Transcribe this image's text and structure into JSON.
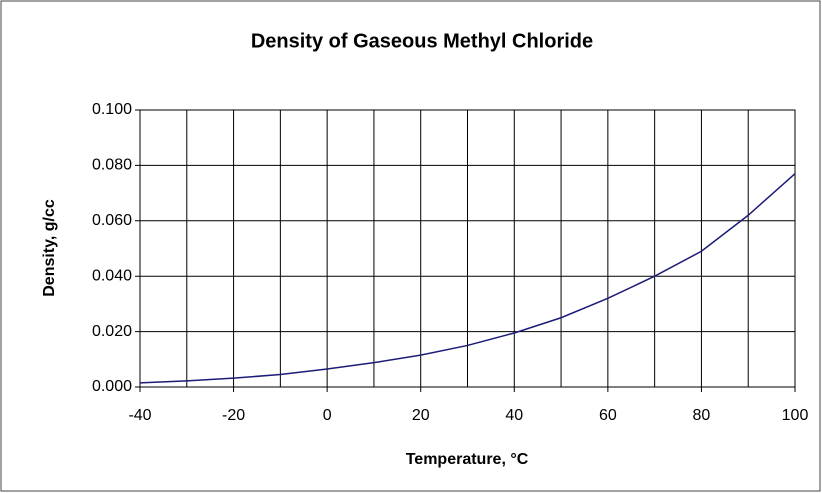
{
  "chart_data": {
    "type": "line",
    "title": "Density of Gaseous Methyl Chloride",
    "x_label": "Temperature, °C",
    "y_label": "Density, g/cc",
    "x": [
      -40,
      -30,
      -20,
      -10,
      0,
      10,
      20,
      30,
      40,
      50,
      60,
      70,
      80,
      90,
      100
    ],
    "series": [
      {
        "name": "Density",
        "color": "#1c1c78",
        "values": [
          0.0015,
          0.0022,
          0.0032,
          0.0045,
          0.0065,
          0.0088,
          0.0115,
          0.015,
          0.0195,
          0.025,
          0.032,
          0.04,
          0.049,
          0.062,
          0.077
        ]
      }
    ],
    "xlim": [
      -40,
      100
    ],
    "xticks": [
      -40,
      -20,
      0,
      20,
      40,
      60,
      80,
      100
    ],
    "xgrid": [
      -40,
      -30,
      -20,
      -10,
      0,
      10,
      20,
      30,
      40,
      50,
      60,
      70,
      80,
      90,
      100
    ],
    "ylim": [
      0,
      0.1
    ],
    "yticks": [
      {
        "value": 0,
        "label": "0.000"
      },
      {
        "value": 0.02,
        "label": "0.020"
      },
      {
        "value": 0.04,
        "label": "0.040"
      },
      {
        "value": 0.06,
        "label": "0.060"
      },
      {
        "value": 0.08,
        "label": "0.080"
      },
      {
        "value": 0.1,
        "label": "0.100"
      }
    ],
    "grid": true,
    "legend": false
  }
}
